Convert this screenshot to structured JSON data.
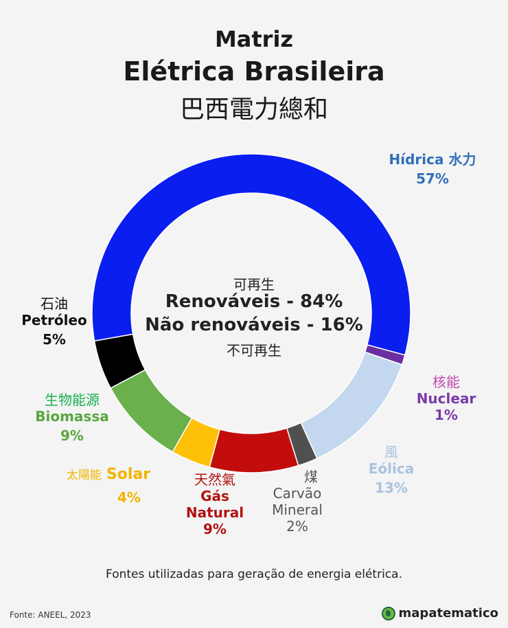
{
  "title": {
    "line1": "Matriz",
    "line2": "Elétrica Brasileira",
    "line3": "巴西電力總和"
  },
  "center": {
    "zh_renewable": "可再生",
    "renewable": "Renováveis - 84%",
    "non_renewable": "Não renováveis - 16%",
    "zh_non_renewable": "不可再生"
  },
  "chart_data": {
    "type": "pie",
    "title": "Matriz Elétrica Brasileira",
    "slices": [
      {
        "name": "Hídrica",
        "zh": "水力",
        "value": 57,
        "label": "57%",
        "color": "#0a1ef0"
      },
      {
        "name": "Nuclear",
        "zh": "核能",
        "value": 1,
        "label": "1%",
        "color": "#6a2fa0"
      },
      {
        "name": "Eólica",
        "zh": "風",
        "value": 13,
        "label": "13%",
        "color": "#c3d8ee"
      },
      {
        "name": "Carvão Mineral",
        "zh": "煤",
        "value": 2,
        "label": "2%",
        "color": "#505050"
      },
      {
        "name": "Gás Natural",
        "zh": "天然氣",
        "value": 9,
        "label": "9%",
        "color": "#c30d0d"
      },
      {
        "name": "Solar",
        "zh": "太陽能",
        "value": 4,
        "label": "4%",
        "color": "#ffc107"
      },
      {
        "name": "Biomassa",
        "zh": "生物能源",
        "value": 9,
        "label": "9%",
        "color": "#6ab04c"
      },
      {
        "name": "Petróleo",
        "zh": "石油",
        "value": 5,
        "label": "5%",
        "color": "#000000"
      }
    ]
  },
  "labels": {
    "hidrica": {
      "name": "Hídrica 水力",
      "pct": "57%",
      "color": "#2f6fb8"
    },
    "nuclear": {
      "zh": "核能",
      "name": "Nuclear",
      "pct": "1%",
      "color": "#7a3aa8",
      "zh_color": "#c04ab0"
    },
    "eolica": {
      "zh": "風",
      "name": "Eólica",
      "pct": "13%",
      "color": "#a9c3de"
    },
    "carvao": {
      "zh": "煤",
      "name1": "Carvão",
      "name2": "Mineral",
      "pct": "2%",
      "color": "#555555"
    },
    "gas": {
      "zh": "天然氣",
      "name1": "Gás",
      "name2": "Natural",
      "pct": "9%",
      "color": "#b31212"
    },
    "solar": {
      "zh": "太陽能",
      "name": "Solar",
      "pct": "4%",
      "color": "#f2b400"
    },
    "biomassa": {
      "zh": "生物能源",
      "name": "Biomassa",
      "pct": "9%",
      "color": "#5aa63f",
      "zh_color": "#18b050"
    },
    "petroleo": {
      "zh": "石油",
      "name": "Petróleo",
      "pct": "5%",
      "color": "#111111"
    }
  },
  "footer": {
    "description": "Fontes utilizadas para geração de energia elétrica.",
    "source": "Fonte: ANEEL, 2023",
    "brand": "mapatematico",
    "brand_icon": "globe-icon"
  }
}
